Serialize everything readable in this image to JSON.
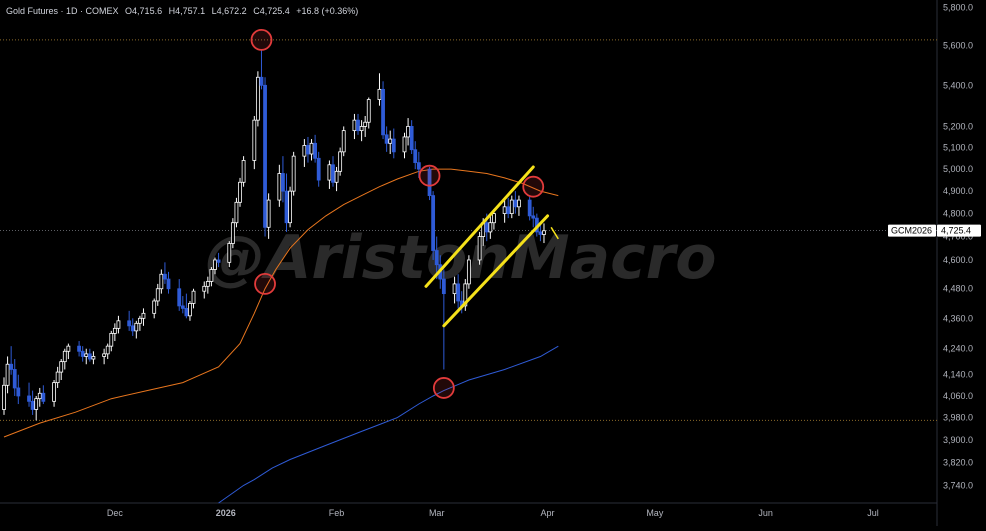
{
  "header": {
    "symbol": "Gold Futures · 1D · COMEX",
    "open": "O4,715.6",
    "high": "H4,757.1",
    "low": "L4,672.2",
    "close": "C4,725.4",
    "change": "+16.8 (+0.36%)"
  },
  "watermark": "@AristonMacro",
  "price_tag": {
    "ticker": "GCM2026",
    "price": "4,725.4"
  },
  "colors": {
    "background": "#000000",
    "up_candle": "#ffffff",
    "down_candle": "#2f5bd6",
    "ma_short": "#e8761e",
    "ma_long": "#2f5bd6",
    "channel": "#f5e11a",
    "circle": "#e23b3b",
    "dotted_line": "#8a6a2a"
  },
  "chart_data": {
    "type": "candlestick",
    "title": "",
    "y_scale": "log",
    "ylim": [
      3680,
      5840
    ],
    "y_ticks": [
      "5,800.0",
      "5,600.0",
      "5,400.0",
      "5,200.0",
      "5,100.0",
      "5,000.0",
      "4,900.0",
      "4,800.0",
      "4,700.0",
      "4,600.0",
      "4,480.0",
      "4,360.0",
      "4,240.0",
      "4,140.0",
      "4,060.0",
      "3,980.0",
      "3,900.0",
      "3,820.0",
      "3,740.0"
    ],
    "x_labels": [
      "Dec",
      "2026",
      "Feb",
      "Mar",
      "Apr",
      "May",
      "Jun",
      "Jul"
    ],
    "x_label_days": [
      31,
      62,
      93,
      121,
      152,
      182,
      213,
      243
    ],
    "x_range_days": [
      0,
      250
    ],
    "last_price": 4725.4,
    "reference_lines": [
      5630,
      3970
    ],
    "candles": [
      [
        0,
        4010,
        4130,
        3990,
        4100
      ],
      [
        1,
        4100,
        4210,
        4070,
        4180
      ],
      [
        2,
        4180,
        4250,
        4140,
        4160
      ],
      [
        3,
        4160,
        4200,
        4060,
        4090
      ],
      [
        4,
        4090,
        4140,
        4030,
        4060
      ],
      [
        7,
        4060,
        4110,
        4020,
        4040
      ],
      [
        8,
        4040,
        4080,
        3990,
        4010
      ],
      [
        9,
        4010,
        4060,
        3970,
        4050
      ],
      [
        10,
        4050,
        4090,
        4020,
        4070
      ],
      [
        11,
        4070,
        4100,
        4030,
        4040
      ],
      [
        14,
        4040,
        4120,
        4020,
        4110
      ],
      [
        15,
        4110,
        4170,
        4090,
        4150
      ],
      [
        16,
        4150,
        4200,
        4120,
        4190
      ],
      [
        17,
        4190,
        4240,
        4160,
        4230
      ],
      [
        18,
        4230,
        4260,
        4200,
        4250
      ],
      [
        21,
        4250,
        4270,
        4210,
        4230
      ],
      [
        22,
        4230,
        4250,
        4190,
        4210
      ],
      [
        23,
        4210,
        4240,
        4180,
        4220
      ],
      [
        24,
        4220,
        4240,
        4190,
        4200
      ],
      [
        25,
        4200,
        4230,
        4180,
        4210
      ],
      [
        28,
        4210,
        4240,
        4180,
        4220
      ],
      [
        29,
        4220,
        4260,
        4200,
        4250
      ],
      [
        30,
        4250,
        4310,
        4230,
        4300
      ],
      [
        31,
        4300,
        4340,
        4270,
        4320
      ],
      [
        32,
        4320,
        4370,
        4300,
        4350
      ],
      [
        35,
        4350,
        4390,
        4310,
        4330
      ],
      [
        36,
        4330,
        4360,
        4290,
        4310
      ],
      [
        37,
        4310,
        4350,
        4280,
        4340
      ],
      [
        38,
        4340,
        4370,
        4310,
        4360
      ],
      [
        39,
        4360,
        4400,
        4330,
        4380
      ],
      [
        42,
        4380,
        4440,
        4360,
        4430
      ],
      [
        43,
        4430,
        4500,
        4410,
        4480
      ],
      [
        44,
        4480,
        4560,
        4460,
        4540
      ],
      [
        45,
        4540,
        4590,
        4500,
        4520
      ],
      [
        46,
        4520,
        4550,
        4460,
        4480
      ],
      [
        49,
        4480,
        4520,
        4390,
        4410
      ],
      [
        50,
        4410,
        4450,
        4380,
        4400
      ],
      [
        51,
        4400,
        4460,
        4360,
        4370
      ],
      [
        52,
        4370,
        4430,
        4350,
        4420
      ],
      [
        53,
        4420,
        4480,
        4400,
        4470
      ],
      [
        56,
        4470,
        4510,
        4440,
        4490
      ],
      [
        57,
        4490,
        4530,
        4460,
        4510
      ],
      [
        58,
        4510,
        4570,
        4490,
        4560
      ],
      [
        59,
        4560,
        4610,
        4540,
        4600
      ],
      [
        60,
        4600,
        4630,
        4570,
        4590
      ],
      [
        63,
        4590,
        4680,
        4570,
        4670
      ],
      [
        64,
        4670,
        4780,
        4650,
        4760
      ],
      [
        65,
        4760,
        4870,
        4740,
        4850
      ],
      [
        66,
        4850,
        4960,
        4830,
        4940
      ],
      [
        67,
        4940,
        5060,
        4920,
        5040
      ],
      [
        70,
        5040,
        5250,
        5000,
        5230
      ],
      [
        71,
        5230,
        5470,
        5200,
        5440
      ],
      [
        72,
        5440,
        5580,
        5380,
        5400
      ],
      [
        73,
        5400,
        5440,
        4700,
        4740
      ],
      [
        74,
        4740,
        4890,
        4690,
        4860
      ],
      [
        77,
        4860,
        5020,
        4830,
        4980
      ],
      [
        78,
        4980,
        5060,
        4850,
        4900
      ],
      [
        79,
        4900,
        4980,
        4720,
        4760
      ],
      [
        80,
        4760,
        4920,
        4740,
        4900
      ],
      [
        81,
        4900,
        5080,
        4880,
        5060
      ],
      [
        84,
        5060,
        5140,
        5010,
        5110
      ],
      [
        85,
        5110,
        5150,
        5030,
        5070
      ],
      [
        86,
        5070,
        5140,
        5040,
        5120
      ],
      [
        87,
        5120,
        5160,
        5030,
        5050
      ],
      [
        88,
        5050,
        5080,
        4920,
        4950
      ],
      [
        91,
        4950,
        5040,
        4910,
        5020
      ],
      [
        92,
        5020,
        5060,
        4920,
        4940
      ],
      [
        93,
        4940,
        5010,
        4900,
        4990
      ],
      [
        94,
        4990,
        5100,
        4970,
        5080
      ],
      [
        95,
        5080,
        5200,
        5060,
        5180
      ],
      [
        98,
        5180,
        5260,
        5140,
        5230
      ],
      [
        99,
        5230,
        5260,
        5160,
        5180
      ],
      [
        100,
        5180,
        5230,
        5130,
        5200
      ],
      [
        101,
        5200,
        5250,
        5150,
        5220
      ],
      [
        102,
        5220,
        5340,
        5190,
        5330
      ],
      [
        105,
        5330,
        5460,
        5300,
        5380
      ],
      [
        106,
        5380,
        5420,
        5140,
        5160
      ],
      [
        107,
        5160,
        5200,
        5080,
        5120
      ],
      [
        108,
        5120,
        5180,
        5070,
        5140
      ],
      [
        109,
        5140,
        5190,
        5050,
        5080
      ],
      [
        112,
        5080,
        5170,
        5050,
        5150
      ],
      [
        113,
        5150,
        5240,
        5110,
        5200
      ],
      [
        114,
        5200,
        5230,
        5070,
        5090
      ],
      [
        115,
        5090,
        5130,
        5000,
        5030
      ],
      [
        116,
        5030,
        5080,
        4960,
        5000
      ],
      [
        119,
        5000,
        5010,
        4860,
        4880
      ],
      [
        120,
        4880,
        4900,
        4600,
        4640
      ],
      [
        121,
        4640,
        4700,
        4520,
        4580
      ],
      [
        122,
        4580,
        4620,
        4480,
        4520
      ],
      [
        123,
        4520,
        4560,
        4160,
        4460
      ],
      [
        126,
        4460,
        4530,
        4420,
        4500
      ],
      [
        127,
        4500,
        4540,
        4400,
        4430
      ],
      [
        128,
        4430,
        4470,
        4380,
        4410
      ],
      [
        129,
        4410,
        4520,
        4390,
        4500
      ],
      [
        130,
        4500,
        4620,
        4480,
        4600
      ],
      [
        133,
        4600,
        4720,
        4580,
        4700
      ],
      [
        134,
        4700,
        4780,
        4660,
        4760
      ],
      [
        135,
        4760,
        4800,
        4680,
        4720
      ],
      [
        136,
        4720,
        4790,
        4690,
        4760
      ],
      [
        137,
        4760,
        4820,
        4730,
        4800
      ],
      [
        140,
        4800,
        4860,
        4760,
        4830
      ],
      [
        141,
        4830,
        4870,
        4780,
        4800
      ],
      [
        142,
        4800,
        4880,
        4780,
        4860
      ],
      [
        143,
        4860,
        4900,
        4800,
        4830
      ],
      [
        144,
        4830,
        4880,
        4790,
        4860
      ],
      [
        147,
        4860,
        4880,
        4770,
        4790
      ],
      [
        148,
        4790,
        4830,
        4740,
        4780
      ],
      [
        149,
        4780,
        4800,
        4700,
        4720
      ],
      [
        150,
        4720,
        4760,
        4680,
        4709
      ],
      [
        151,
        4709,
        4757,
        4672,
        4725
      ]
    ],
    "series": [
      {
        "name": "",
        "color": "#e8761e",
        "points": [
          [
            0,
            3910
          ],
          [
            10,
            3960
          ],
          [
            20,
            4000
          ],
          [
            30,
            4050
          ],
          [
            40,
            4080
          ],
          [
            50,
            4110
          ],
          [
            60,
            4170
          ],
          [
            66,
            4260
          ],
          [
            70,
            4380
          ],
          [
            73,
            4480
          ],
          [
            76,
            4560
          ],
          [
            80,
            4650
          ],
          [
            85,
            4730
          ],
          [
            90,
            4790
          ],
          [
            95,
            4840
          ],
          [
            100,
            4880
          ],
          [
            105,
            4920
          ],
          [
            110,
            4955
          ],
          [
            116,
            4990
          ],
          [
            120,
            5000
          ],
          [
            125,
            5000
          ],
          [
            130,
            4990
          ],
          [
            135,
            4980
          ],
          [
            140,
            4960
          ],
          [
            145,
            4935
          ],
          [
            150,
            4900
          ],
          [
            155,
            4880
          ]
        ]
      },
      {
        "name": "",
        "color": "#2f5bd6",
        "points": [
          [
            60,
            3680
          ],
          [
            67,
            3740
          ],
          [
            70,
            3760
          ],
          [
            75,
            3800
          ],
          [
            80,
            3830
          ],
          [
            90,
            3880
          ],
          [
            100,
            3930
          ],
          [
            110,
            3980
          ],
          [
            116,
            4030
          ],
          [
            120,
            4060
          ],
          [
            123,
            4080
          ],
          [
            130,
            4120
          ],
          [
            140,
            4160
          ],
          [
            150,
            4210
          ],
          [
            155,
            4250
          ]
        ]
      }
    ],
    "annotations": {
      "circles": [
        [
          72,
          5630
        ],
        [
          73,
          4500
        ],
        [
          119,
          4970
        ],
        [
          123,
          4090
        ],
        [
          148,
          4920
        ]
      ],
      "channel_lines": [
        [
          [
            118,
            4490
          ],
          [
            148,
            5010
          ]
        ],
        [
          [
            123,
            4330
          ],
          [
            152,
            4790
          ]
        ]
      ],
      "small_mark": [
        [
          153,
          4740
        ],
        [
          155,
          4690
        ]
      ]
    }
  }
}
